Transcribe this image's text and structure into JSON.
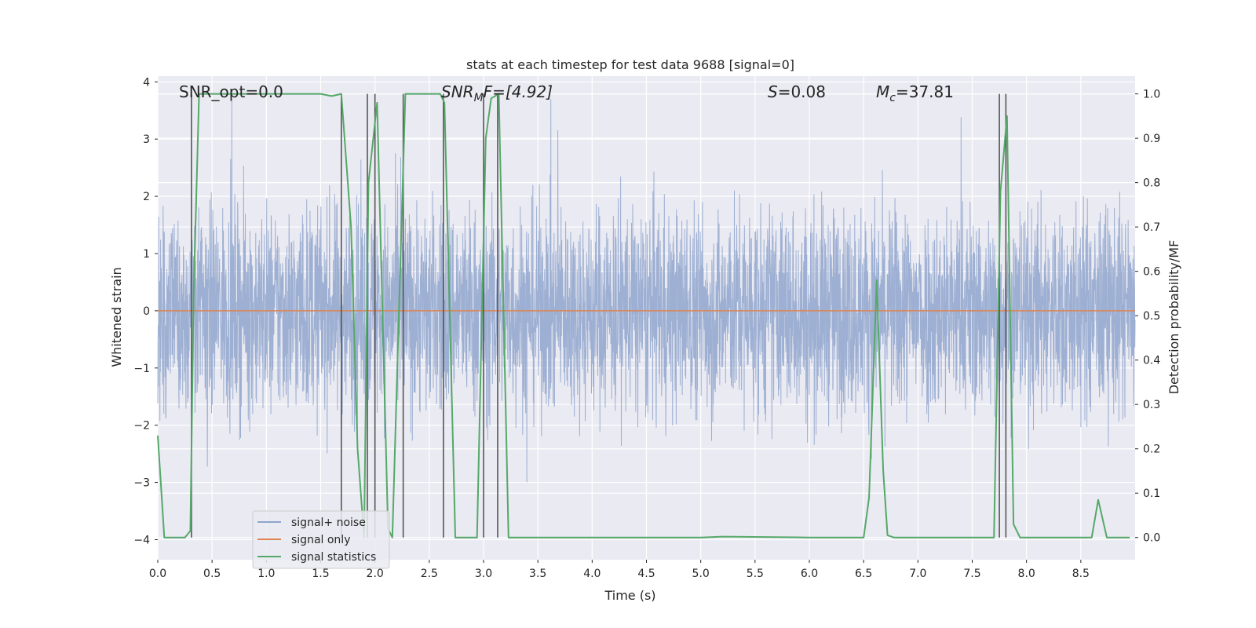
{
  "chart_data": {
    "type": "line",
    "title": "stats at each timestep for test data 9688 [signal=0]",
    "xlabel": "Time (s)",
    "ylabel": "Whitened strain",
    "ylabel_right": "Detection probability/MF",
    "xlim": [
      0.0,
      9.0
    ],
    "ylim": [
      -4.35,
      4.1
    ],
    "ylim_right": [
      -0.05,
      1.04
    ],
    "x_ticks": [
      "0.0",
      "0.5",
      "1.0",
      "1.5",
      "2.0",
      "2.5",
      "3.0",
      "3.5",
      "4.0",
      "4.5",
      "5.0",
      "5.5",
      "6.0",
      "6.5",
      "7.0",
      "7.5",
      "8.0",
      "8.5"
    ],
    "y_ticks": [
      "4",
      "3",
      "2",
      "1",
      "0",
      "−1",
      "−2",
      "−3",
      "−4"
    ],
    "y_ticks_right": [
      "1.0",
      "0.9",
      "0.8",
      "0.7",
      "0.6",
      "0.5",
      "0.4",
      "0.3",
      "0.2",
      "0.1",
      "0.0"
    ],
    "annotations": {
      "snr_opt": "SNR_opt=0.0",
      "snr_mf_main": "SNR",
      "snr_mf_sub": "M",
      "snr_mf_rest": "F=[4.92]",
      "s_main": "S",
      "s_rest": "=0.08",
      "mc_main": "M",
      "mc_sub": "c",
      "mc_rest": "=37.81"
    },
    "legend": {
      "position": "lower-left",
      "entries": [
        "signal+ noise",
        "signal only",
        "signal statistics"
      ]
    },
    "colors": {
      "noise": "#8fa4cc",
      "signal": "#dd8452",
      "stats": "#55a868",
      "vlines": "#555555",
      "plot_bg": "#eaeaf2",
      "grid": "#ffffff"
    },
    "series": [
      {
        "name": "signal statistics",
        "x": [
          0.0,
          0.06,
          0.25,
          0.3,
          0.33,
          0.38,
          0.5,
          1.0,
          1.5,
          1.6,
          1.69,
          1.78,
          1.84,
          1.9,
          1.94,
          2.02,
          2.12,
          2.16,
          2.28,
          2.35,
          2.6,
          2.64,
          2.74,
          2.85,
          2.94,
          3.02,
          3.07,
          3.14,
          3.23,
          3.3,
          4.0,
          5.0,
          5.2,
          6.0,
          6.5,
          6.55,
          6.62,
          6.68,
          6.72,
          6.78,
          7.0,
          7.5,
          7.7,
          7.76,
          7.82,
          7.88,
          7.94,
          8.0,
          8.5,
          8.6,
          8.66,
          8.74,
          8.82,
          8.95
        ],
        "values": [
          0.23,
          0.0,
          0.0,
          0.015,
          0.55,
          1.0,
          1.0,
          1.0,
          1.0,
          0.995,
          1.0,
          0.7,
          0.2,
          0.0,
          0.8,
          0.98,
          0.02,
          0.0,
          1.0,
          1.0,
          1.0,
          0.98,
          0.0,
          0.0,
          0.0,
          0.9,
          0.99,
          1.0,
          0.0,
          0.0,
          0.0,
          0.0,
          0.002,
          0.0,
          0.0,
          0.09,
          0.58,
          0.15,
          0.005,
          0.0,
          0.0,
          0.0,
          0.0,
          0.78,
          0.95,
          0.03,
          0.0,
          0.0,
          0.0,
          0.0,
          0.085,
          0.0,
          0.0,
          0.0
        ]
      },
      {
        "name": "signal only",
        "x": [
          0.0,
          9.0
        ],
        "values": [
          0.0,
          0.0
        ]
      }
    ],
    "noise_envelope": {
      "band": [
        -1.85,
        2.0
      ],
      "extremes": [
        -4.0,
        3.7
      ]
    },
    "vertical_lines_x": [
      0.31,
      1.69,
      1.93,
      2.0,
      2.26,
      2.63,
      3.0,
      3.13,
      7.75,
      7.81
    ]
  }
}
